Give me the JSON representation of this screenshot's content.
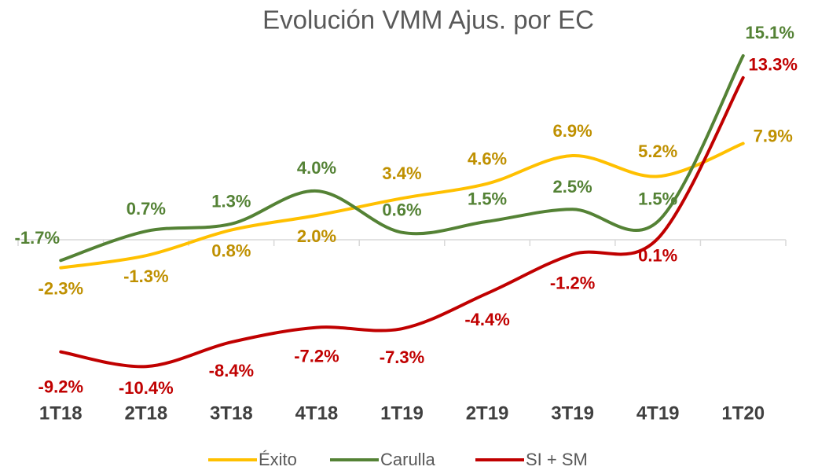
{
  "chart_data": {
    "type": "line",
    "title": "Evolución VMM Ajus. por EC",
    "categories": [
      "1T18",
      "2T18",
      "3T18",
      "4T18",
      "1T19",
      "2T19",
      "3T19",
      "4T19",
      "1T20"
    ],
    "series": [
      {
        "name": "Éxito",
        "color": "#FFC000",
        "label_color": "#BF9000",
        "values": [
          -2.3,
          -1.3,
          0.8,
          2.0,
          3.4,
          4.6,
          6.9,
          5.2,
          7.9
        ],
        "value_labels": [
          "-2.3%",
          "-1.3%",
          "0.8%",
          "2.0%",
          "3.4%",
          "4.6%",
          "6.9%",
          "5.2%",
          "7.9%"
        ]
      },
      {
        "name": "Carulla",
        "color": "#548235",
        "label_color": "#548235",
        "values": [
          -1.7,
          0.7,
          1.3,
          4.0,
          0.6,
          1.5,
          2.5,
          1.5,
          15.1
        ],
        "value_labels": [
          "-1.7%",
          "0.7%",
          "1.3%",
          "4.0%",
          "0.6%",
          "1.5%",
          "2.5%",
          "1.5%",
          "15.1%"
        ]
      },
      {
        "name": "SI + SM",
        "color": "#C00000",
        "label_color": "#C00000",
        "values": [
          -9.2,
          -10.4,
          -8.4,
          -7.2,
          -7.3,
          -4.4,
          -1.2,
          0.1,
          13.3
        ],
        "value_labels": [
          "-9.2%",
          "-10.4%",
          "-8.4%",
          "-7.2%",
          "-7.3%",
          "-4.4%",
          "-1.2%",
          "0.1%",
          "13.3%"
        ]
      }
    ],
    "ylim": [
      -12,
      17
    ],
    "legend": "bottom"
  }
}
